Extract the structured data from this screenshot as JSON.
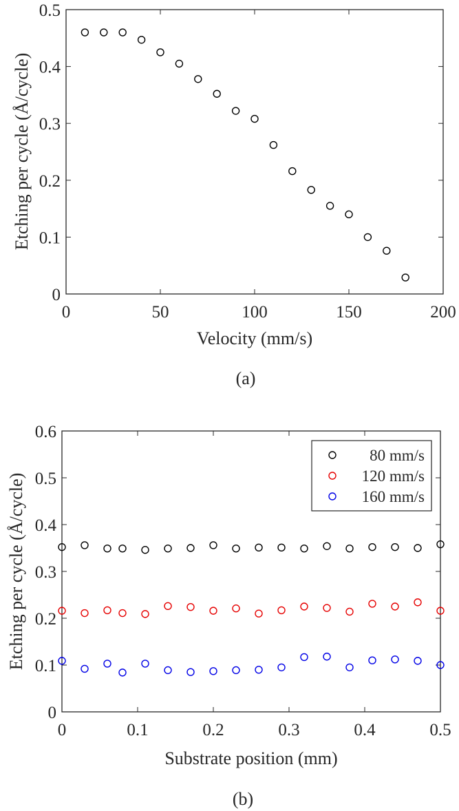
{
  "chart_data": [
    {
      "type": "scatter",
      "caption": "(a)",
      "xlabel": "Velocity (mm/s)",
      "ylabel": "Etching per cycle (Å/cycle)",
      "xlim": [
        0,
        200
      ],
      "ylim": [
        0,
        0.5
      ],
      "xticks": [
        0,
        50,
        100,
        150,
        200
      ],
      "yticks": [
        0,
        0.1,
        0.2,
        0.3,
        0.4,
        0.5
      ],
      "legend": "none",
      "grid": false,
      "series": [
        {
          "color": "#000000",
          "marker": "open-circle",
          "x": [
            10,
            20,
            30,
            40,
            50,
            60,
            70,
            80,
            90,
            100,
            110,
            120,
            130,
            140,
            150,
            160,
            170,
            180
          ],
          "y": [
            0.46,
            0.46,
            0.46,
            0.447,
            0.425,
            0.405,
            0.378,
            0.352,
            0.322,
            0.308,
            0.262,
            0.216,
            0.183,
            0.155,
            0.14,
            0.1,
            0.076,
            0.029
          ]
        }
      ]
    },
    {
      "type": "scatter",
      "caption": "(b)",
      "xlabel": "Substrate position (mm)",
      "ylabel": "Etching per cycle (Å/cycle)",
      "xlim": [
        0,
        0.5
      ],
      "ylim": [
        0,
        0.6
      ],
      "xticks": [
        0,
        0.1,
        0.2,
        0.3,
        0.4,
        0.5
      ],
      "yticks": [
        0,
        0.1,
        0.2,
        0.3,
        0.4,
        0.5,
        0.6
      ],
      "legend": "top-right",
      "grid": false,
      "x": [
        0,
        0.03,
        0.06,
        0.08,
        0.11,
        0.14,
        0.17,
        0.2,
        0.23,
        0.26,
        0.29,
        0.32,
        0.35,
        0.38,
        0.41,
        0.44,
        0.47,
        0.5
      ],
      "series": [
        {
          "name": "80 mm/s",
          "color": "#000000",
          "marker": "open-circle",
          "values": [
            0.352,
            0.356,
            0.349,
            0.349,
            0.346,
            0.349,
            0.35,
            0.356,
            0.349,
            0.351,
            0.351,
            0.349,
            0.354,
            0.349,
            0.352,
            0.352,
            0.35,
            0.358
          ]
        },
        {
          "name": "120 mm/s",
          "color": "#e60000",
          "marker": "open-circle",
          "values": [
            0.216,
            0.211,
            0.217,
            0.211,
            0.209,
            0.226,
            0.224,
            0.216,
            0.221,
            0.21,
            0.217,
            0.225,
            0.222,
            0.214,
            0.231,
            0.225,
            0.234,
            0.216
          ]
        },
        {
          "name": "160 mm/s",
          "color": "#0000e6",
          "marker": "open-circle",
          "values": [
            0.109,
            0.092,
            0.103,
            0.084,
            0.103,
            0.089,
            0.085,
            0.087,
            0.089,
            0.09,
            0.095,
            0.117,
            0.118,
            0.095,
            0.11,
            0.112,
            0.109,
            0.1
          ]
        }
      ]
    }
  ]
}
